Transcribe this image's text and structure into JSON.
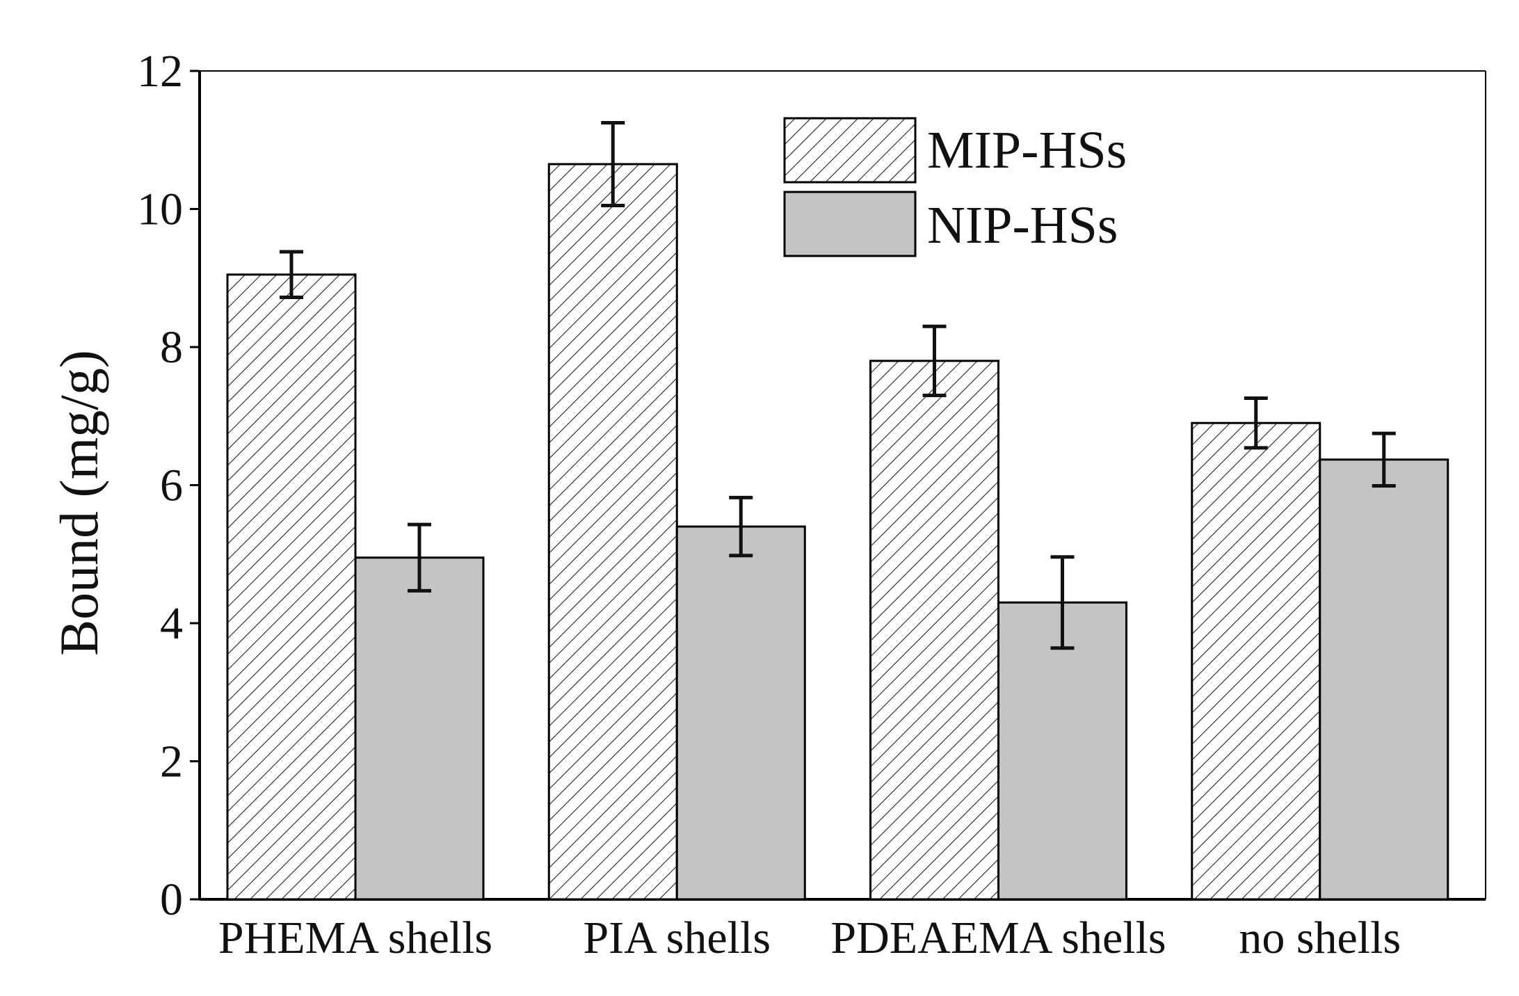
{
  "chart_data": {
    "type": "bar",
    "title": "",
    "xlabel": "",
    "ylabel": "Bound (mg/g)",
    "ylim": [
      0,
      12
    ],
    "yticks": [
      0,
      2,
      4,
      6,
      8,
      10,
      12
    ],
    "grid": false,
    "legend_position": "top-center",
    "categories": [
      "PHEMA shells",
      "PIA shells",
      "PDEAEMA shells",
      "no shells"
    ],
    "series": [
      {
        "name": "MIP-HSs",
        "fill": "hatched",
        "values": [
          9.05,
          10.65,
          7.8,
          6.9
        ],
        "errors": [
          0.33,
          0.6,
          0.5,
          0.36
        ]
      },
      {
        "name": "NIP-HSs",
        "fill": "#c4c3c6",
        "values": [
          4.95,
          5.4,
          4.3,
          6.37
        ],
        "errors": [
          0.48,
          0.42,
          0.66,
          0.38
        ]
      }
    ],
    "colors": {
      "nip_fill": "#c4c3c6",
      "hatch_line": "#222222",
      "axis": "#000000",
      "error_bar": "#111111"
    }
  }
}
